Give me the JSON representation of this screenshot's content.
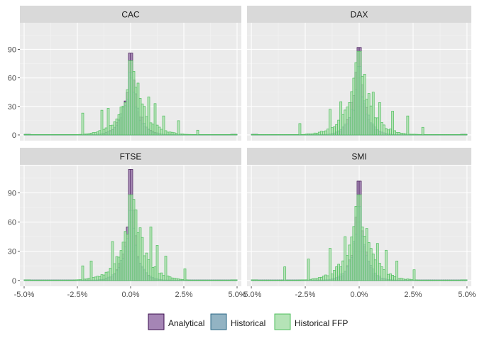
{
  "chart_data": {
    "type": "bar",
    "subtype": "faceted-histogram",
    "x_tick_labels": [
      "-5.0%",
      "-2.5%",
      "0.0%",
      "2.5%",
      "5.0%"
    ],
    "x_ticks": [
      -5.0,
      -2.5,
      0.0,
      2.5,
      5.0
    ],
    "y_tick_labels": [
      "0",
      "30",
      "60",
      "90"
    ],
    "y_ticks": [
      0,
      30,
      60,
      90
    ],
    "xlim": [
      -5.2,
      5.2
    ],
    "ylim": [
      -6,
      118
    ],
    "bin_width": 0.1,
    "grid": true,
    "legend_position": "bottom",
    "series_styles": [
      {
        "name": "Analytical",
        "fill": "#9570a8",
        "stroke": "#3b0f4f"
      },
      {
        "name": "Historical",
        "fill": "#7fa6b9",
        "stroke": "#2a6786"
      },
      {
        "name": "Historical FFP",
        "fill": "#a8deaa",
        "stroke": "#4fbf5e"
      }
    ],
    "panels": [
      {
        "title": "CAC",
        "series": [
          {
            "name": "Analytical",
            "center": 0.0,
            "scale": 0.55,
            "peak": 86
          },
          {
            "name": "Historical",
            "center": 0.0,
            "scale": 0.6,
            "peak": 66
          },
          {
            "name": "Historical FFP",
            "center": 0.1,
            "scale": 0.9,
            "peak": 78,
            "outliers": [
              [
                -2.3,
                23
              ],
              [
                -1.4,
                26
              ],
              [
                -1.1,
                28
              ],
              [
                0.8,
                40
              ],
              [
                1.1,
                33
              ],
              [
                1.5,
                20
              ],
              [
                2.2,
                15
              ],
              [
                3.2,
                5
              ]
            ]
          }
        ]
      },
      {
        "title": "DAX",
        "series": [
          {
            "name": "Analytical",
            "center": 0.0,
            "scale": 0.5,
            "peak": 92
          },
          {
            "name": "Historical",
            "center": 0.0,
            "scale": 0.55,
            "peak": 72
          },
          {
            "name": "Historical FFP",
            "center": 0.0,
            "scale": 0.9,
            "peak": 88,
            "outliers": [
              [
                -2.8,
                12
              ],
              [
                -1.4,
                27
              ],
              [
                -0.9,
                35
              ],
              [
                0.6,
                45
              ],
              [
                0.9,
                34
              ],
              [
                1.5,
                25
              ],
              [
                2.3,
                20
              ],
              [
                3.0,
                8
              ]
            ]
          }
        ]
      },
      {
        "title": "FTSE",
        "series": [
          {
            "name": "Analytical",
            "center": 0.0,
            "scale": 0.45,
            "peak": 114
          },
          {
            "name": "Historical",
            "center": 0.0,
            "scale": 0.55,
            "peak": 72
          },
          {
            "name": "Historical FFP",
            "center": 0.1,
            "scale": 0.9,
            "peak": 88,
            "outliers": [
              [
                -2.3,
                15
              ],
              [
                -1.9,
                20
              ],
              [
                -0.9,
                40
              ],
              [
                0.9,
                55
              ],
              [
                1.2,
                36
              ],
              [
                1.6,
                25
              ],
              [
                2.6,
                12
              ]
            ]
          }
        ]
      },
      {
        "title": "SMI",
        "series": [
          {
            "name": "Analytical",
            "center": 0.0,
            "scale": 0.45,
            "peak": 102
          },
          {
            "name": "Historical",
            "center": 0.0,
            "scale": 0.55,
            "peak": 76
          },
          {
            "name": "Historical FFP",
            "center": 0.0,
            "scale": 0.9,
            "peak": 88,
            "outliers": [
              [
                -3.5,
                14
              ],
              [
                -2.4,
                22
              ],
              [
                -1.4,
                33
              ],
              [
                -0.7,
                45
              ],
              [
                0.8,
                38
              ],
              [
                1.2,
                31
              ],
              [
                1.7,
                20
              ],
              [
                2.6,
                11
              ]
            ]
          }
        ]
      }
    ]
  },
  "legend": {
    "items": [
      {
        "label": "Analytical"
      },
      {
        "label": "Historical"
      },
      {
        "label": "Historical FFP"
      }
    ]
  }
}
